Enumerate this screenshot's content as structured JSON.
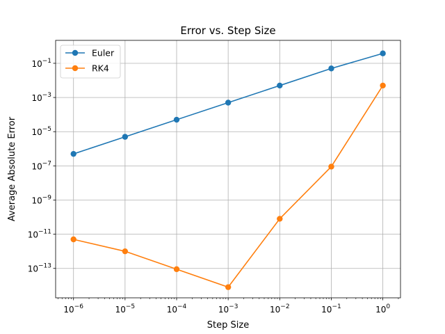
{
  "chart_data": {
    "type": "line",
    "title": "Error vs. Step Size",
    "xlabel": "Step Size",
    "ylabel": "Average Absolute Error",
    "x_scale": "log",
    "y_scale": "log",
    "grid": true,
    "legend_position": "top-left",
    "x": [
      1e-06,
      1e-05,
      0.0001,
      0.001,
      0.01,
      0.1,
      1
    ],
    "x_ticks": [
      {
        "base": "10",
        "exp": "−6",
        "value": 1e-06
      },
      {
        "base": "10",
        "exp": "−5",
        "value": 1e-05
      },
      {
        "base": "10",
        "exp": "−4",
        "value": 0.0001
      },
      {
        "base": "10",
        "exp": "−3",
        "value": 0.001
      },
      {
        "base": "10",
        "exp": "−2",
        "value": 0.01
      },
      {
        "base": "10",
        "exp": "−1",
        "value": 0.1
      },
      {
        "base": "10",
        "exp": "0",
        "value": 1
      }
    ],
    "y_ticks": [
      {
        "base": "10",
        "exp": "−13",
        "value": 1e-13
      },
      {
        "base": "10",
        "exp": "−11",
        "value": 1e-11
      },
      {
        "base": "10",
        "exp": "−9",
        "value": 1e-09
      },
      {
        "base": "10",
        "exp": "−7",
        "value": 1e-07
      },
      {
        "base": "10",
        "exp": "−5",
        "value": 1e-05
      },
      {
        "base": "10",
        "exp": "−3",
        "value": 0.001
      },
      {
        "base": "10",
        "exp": "−1",
        "value": 0.1
      }
    ],
    "xlim": [
      4.5e-07,
      2.2
    ],
    "ylim": [
      1.9e-15,
      2.2
    ],
    "series": [
      {
        "name": "Euler",
        "color": "#1f77b4",
        "values": [
          5e-07,
          5e-06,
          5e-05,
          0.0005,
          0.005,
          0.05,
          0.38
        ]
      },
      {
        "name": "RK4",
        "color": "#ff7f0e",
        "values": [
          5e-12,
          1e-12,
          9e-14,
          8e-15,
          8e-11,
          9e-08,
          0.005
        ]
      }
    ]
  }
}
